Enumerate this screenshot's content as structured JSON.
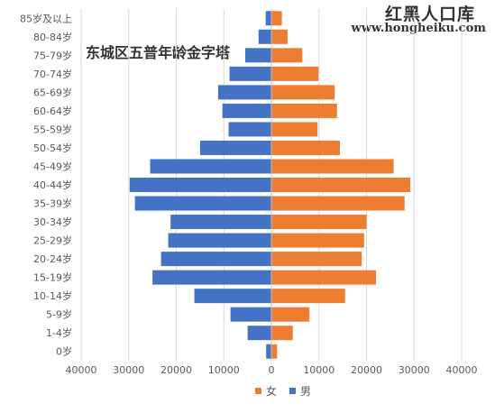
{
  "watermark": {
    "title": "红黑人口库",
    "url": "www.hongheiku.com"
  },
  "chart_data": {
    "type": "bar",
    "orientation": "horizontal",
    "layout": "population-pyramid",
    "title": "东城区五普年龄金字塔",
    "categories": [
      "0岁",
      "1-4岁",
      "5-9岁",
      "10-14岁",
      "15-19岁",
      "20-24岁",
      "25-29岁",
      "30-34岁",
      "35-39岁",
      "40-44岁",
      "45-49岁",
      "50-54岁",
      "55-59岁",
      "60-64岁",
      "65-69岁",
      "70-74岁",
      "75-79岁",
      "80-84岁",
      "85岁及以上"
    ],
    "series": [
      {
        "name": "女",
        "color": "#ed7d31",
        "values": [
          1200,
          4500,
          8000,
          15500,
          22000,
          19000,
          19500,
          20000,
          28000,
          29200,
          25700,
          14400,
          9700,
          13800,
          13300,
          9900,
          6500,
          3400,
          2200
        ]
      },
      {
        "name": "男",
        "color": "#4472c4",
        "values": [
          1100,
          5000,
          8600,
          16200,
          25000,
          23200,
          21700,
          21200,
          28700,
          29800,
          25500,
          15000,
          9000,
          10300,
          11200,
          8800,
          5500,
          2700,
          1200
        ]
      }
    ],
    "xticks": [
      "40000",
      "30000",
      "20000",
      "10000",
      "0",
      "10000",
      "20000",
      "30000",
      "40000"
    ],
    "xlim": [
      -40000,
      40000
    ],
    "grid": true,
    "legend_position": "bottom"
  }
}
